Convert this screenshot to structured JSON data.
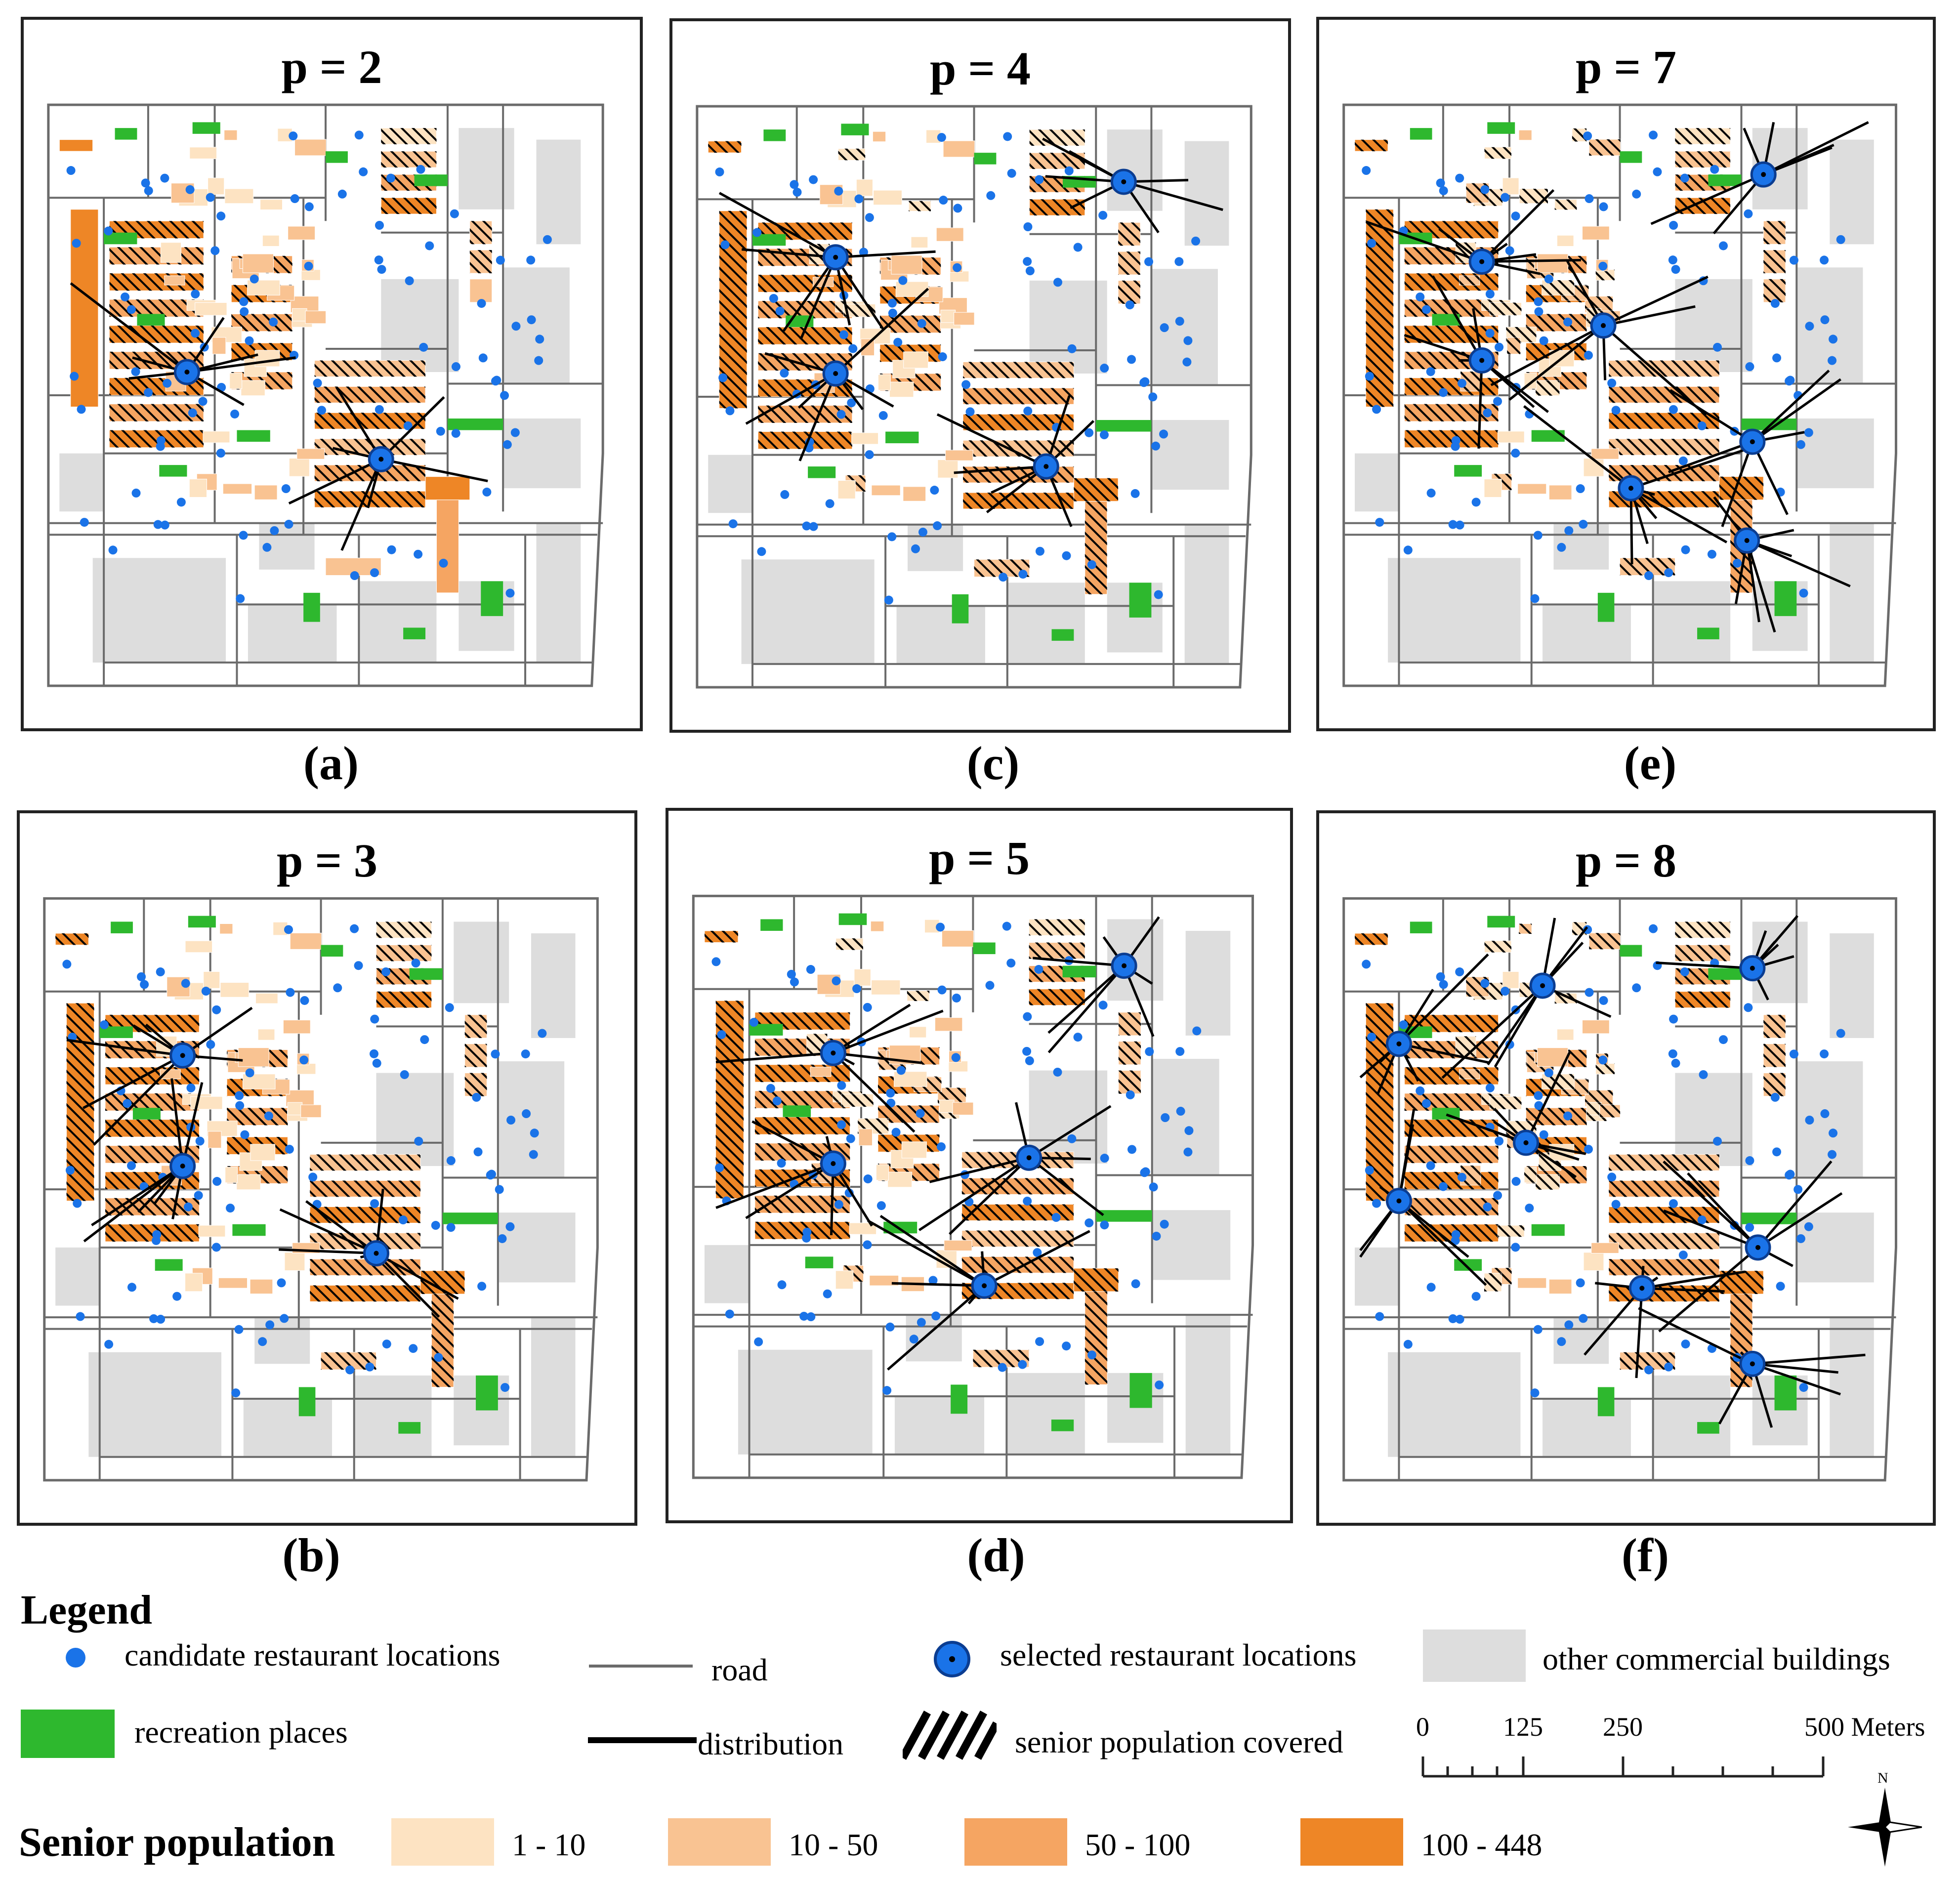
{
  "figure": {
    "panels": [
      {
        "id": "a",
        "title": "p = 2",
        "caption": "(a)",
        "selected": [
          [
            0.25,
            0.46
          ],
          [
            0.6,
            0.61
          ]
        ],
        "extra_hatch": 0
      },
      {
        "id": "c",
        "title": "p = 4",
        "caption": "(c)",
        "selected": [
          [
            0.25,
            0.26
          ],
          [
            0.25,
            0.46
          ],
          [
            0.63,
            0.62
          ],
          [
            0.77,
            0.13
          ]
        ],
        "extra_hatch": 1
      },
      {
        "id": "e",
        "title": "p = 7",
        "caption": "(e)",
        "selected": [
          [
            0.25,
            0.27
          ],
          [
            0.25,
            0.44
          ],
          [
            0.47,
            0.38
          ],
          [
            0.76,
            0.12
          ],
          [
            0.74,
            0.58
          ],
          [
            0.52,
            0.66
          ],
          [
            0.73,
            0.75
          ]
        ],
        "extra_hatch": 2
      },
      {
        "id": "b",
        "title": "p = 3",
        "caption": "(b)",
        "selected": [
          [
            0.25,
            0.27
          ],
          [
            0.25,
            0.46
          ],
          [
            0.6,
            0.61
          ]
        ],
        "extra_hatch": 0
      },
      {
        "id": "d",
        "title": "p = 5",
        "caption": "(d)",
        "selected": [
          [
            0.25,
            0.27
          ],
          [
            0.25,
            0.46
          ],
          [
            0.6,
            0.45
          ],
          [
            0.52,
            0.67
          ],
          [
            0.77,
            0.12
          ]
        ],
        "extra_hatch": 1
      },
      {
        "id": "f",
        "title": "p = 8",
        "caption": "(f)",
        "selected": [
          [
            0.1,
            0.25
          ],
          [
            0.1,
            0.52
          ],
          [
            0.36,
            0.15
          ],
          [
            0.33,
            0.42
          ],
          [
            0.74,
            0.12
          ],
          [
            0.75,
            0.6
          ],
          [
            0.54,
            0.67
          ],
          [
            0.74,
            0.8
          ]
        ],
        "extra_hatch": 2
      }
    ]
  },
  "legend": {
    "title": "Legend",
    "items": {
      "candidate": "candidate restaurant locations",
      "road": "road",
      "selected": "selected restaurant locations",
      "other_commercial": "other commercial buildings",
      "recreation": "recreation places",
      "distribution": "distribution",
      "covered": "senior population covered"
    },
    "scale": {
      "ticks": [
        "0",
        "125",
        "250",
        "500 Meters"
      ]
    },
    "north": "N",
    "senior_population": {
      "title": "Senior population",
      "classes": [
        {
          "label": "1 - 10",
          "color": "#fde3c2"
        },
        {
          "label": "10 - 50",
          "color": "#f9c392"
        },
        {
          "label": "50 - 100",
          "color": "#f5a562"
        },
        {
          "label": "100 - 448",
          "color": "#ee8626"
        }
      ]
    }
  },
  "colors": {
    "candidate": "#1a73e8",
    "selected_ring": "#0b3d91",
    "recreation": "#2eb82e",
    "commercial": "#dddddd",
    "road": "#6b6b6b"
  }
}
